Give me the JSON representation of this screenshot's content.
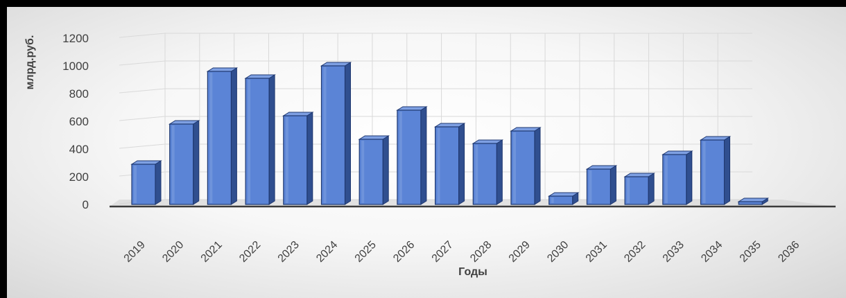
{
  "chart_data": {
    "type": "bar",
    "title": "",
    "xlabel": "Годы",
    "ylabel": "млрд.руб.",
    "ylim": [
      0,
      1200
    ],
    "yticks": [
      "0",
      "200",
      "400",
      "600",
      "800",
      "1000",
      "1200"
    ],
    "categories": [
      "2019",
      "2020",
      "2021",
      "2022",
      "2023",
      "2024",
      "2025",
      "2026",
      "2027",
      "2028",
      "2029",
      "2030",
      "2031",
      "2032",
      "2033",
      "2034",
      "2035",
      "2036"
    ],
    "values": [
      290,
      580,
      960,
      910,
      640,
      1000,
      470,
      680,
      560,
      440,
      530,
      60,
      255,
      200,
      360,
      465,
      20,
      0
    ],
    "grid": true,
    "legend": "none",
    "colors": {
      "bar_front": "#5b84d6",
      "bar_side": "#304f8f",
      "bar_top": "#7ea0e3",
      "bar_edge": "#1f3870",
      "grid": "#d9d9d9",
      "floor": "#c9c9c9"
    }
  }
}
